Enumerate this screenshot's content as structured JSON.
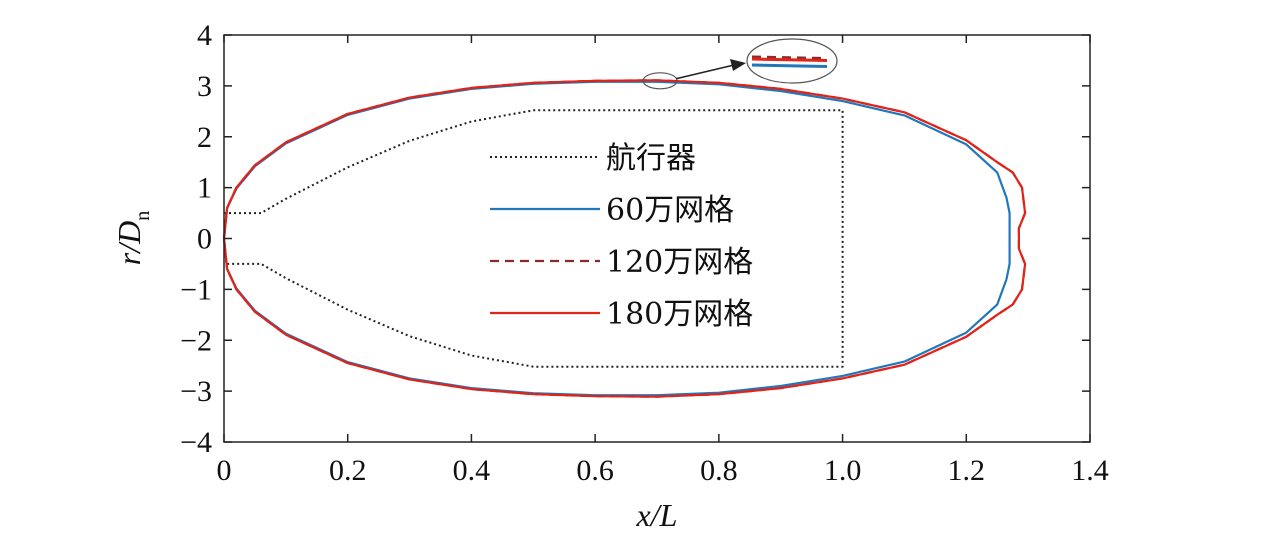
{
  "chart_data": {
    "type": "line",
    "xlabel": "x/L",
    "ylabel": "r/D",
    "ylabel_subscript": "n",
    "xlim": [
      0,
      1.4
    ],
    "ylim": [
      -4,
      4
    ],
    "xticks": [
      "0",
      "0.2",
      "0.4",
      "0.6",
      "0.8",
      "1.0",
      "1.2",
      "1.4"
    ],
    "yticks": [
      "4",
      "3",
      "2",
      "1",
      "0",
      "−1",
      "−2",
      "−3",
      "−4"
    ],
    "grid": false,
    "legend_position": "center",
    "series": [
      {
        "name": "航行器",
        "color": "#222222",
        "style": "dotted",
        "points": [
          [
            0,
            0.5
          ],
          [
            0.06,
            0.5
          ],
          [
            0.1,
            0.78
          ],
          [
            0.2,
            1.4
          ],
          [
            0.3,
            1.92
          ],
          [
            0.4,
            2.3
          ],
          [
            0.5,
            2.52
          ],
          [
            1.0,
            2.52
          ],
          [
            1.0,
            -2.52
          ],
          [
            0.5,
            -2.52
          ],
          [
            0.4,
            -2.3
          ],
          [
            0.3,
            -1.92
          ],
          [
            0.2,
            -1.4
          ],
          [
            0.1,
            -0.78
          ],
          [
            0.06,
            -0.5
          ],
          [
            0,
            -0.5
          ]
        ]
      },
      {
        "name": "60万网格",
        "color": "#2277bb",
        "style": "solid",
        "points": [
          [
            1.265,
            -0.8
          ],
          [
            1.27,
            -0.5
          ],
          [
            1.27,
            0
          ],
          [
            1.27,
            0.5
          ],
          [
            1.265,
            0.8
          ],
          [
            1.25,
            1.3
          ],
          [
            1.2,
            1.85
          ],
          [
            1.1,
            2.42
          ],
          [
            1.0,
            2.7
          ],
          [
            0.9,
            2.9
          ],
          [
            0.8,
            3.03
          ],
          [
            0.7,
            3.08
          ],
          [
            0.6,
            3.08
          ],
          [
            0.5,
            3.04
          ],
          [
            0.4,
            2.94
          ],
          [
            0.3,
            2.75
          ],
          [
            0.2,
            2.43
          ],
          [
            0.1,
            1.87
          ],
          [
            0.05,
            1.42
          ],
          [
            0.02,
            0.98
          ],
          [
            0.005,
            0.6
          ],
          [
            0,
            0
          ],
          [
            0.005,
            -0.6
          ],
          [
            0.02,
            -0.98
          ],
          [
            0.05,
            -1.42
          ],
          [
            0.1,
            -1.87
          ],
          [
            0.2,
            -2.43
          ],
          [
            0.3,
            -2.75
          ],
          [
            0.4,
            -2.94
          ],
          [
            0.5,
            -3.04
          ],
          [
            0.6,
            -3.08
          ],
          [
            0.7,
            -3.08
          ],
          [
            0.8,
            -3.03
          ],
          [
            0.9,
            -2.9
          ],
          [
            1.0,
            -2.7
          ],
          [
            1.1,
            -2.42
          ],
          [
            1.2,
            -1.85
          ],
          [
            1.25,
            -1.3
          ],
          [
            1.265,
            -0.8
          ]
        ]
      },
      {
        "name": "120万网格",
        "color": "#8b2a2a",
        "style": "dashed",
        "points": [
          [
            1.275,
            -1.3
          ],
          [
            1.29,
            -1.0
          ],
          [
            1.295,
            -0.5
          ],
          [
            1.285,
            -0.2
          ],
          [
            1.285,
            0.2
          ],
          [
            1.295,
            0.5
          ],
          [
            1.29,
            1.0
          ],
          [
            1.275,
            1.3
          ],
          [
            1.25,
            1.5
          ],
          [
            1.2,
            1.93
          ],
          [
            1.1,
            2.48
          ],
          [
            1.0,
            2.75
          ],
          [
            0.9,
            2.94
          ],
          [
            0.8,
            3.06
          ],
          [
            0.7,
            3.11
          ],
          [
            0.6,
            3.1
          ],
          [
            0.5,
            3.06
          ],
          [
            0.4,
            2.96
          ],
          [
            0.3,
            2.77
          ],
          [
            0.2,
            2.45
          ],
          [
            0.1,
            1.89
          ],
          [
            0.05,
            1.44
          ],
          [
            0.02,
            1.0
          ],
          [
            0.005,
            0.6
          ],
          [
            0,
            0
          ],
          [
            0.005,
            -0.6
          ],
          [
            0.02,
            -1.0
          ],
          [
            0.05,
            -1.44
          ],
          [
            0.1,
            -1.89
          ],
          [
            0.2,
            -2.45
          ],
          [
            0.3,
            -2.77
          ],
          [
            0.4,
            -2.96
          ],
          [
            0.5,
            -3.06
          ],
          [
            0.6,
            -3.1
          ],
          [
            0.7,
            -3.11
          ],
          [
            0.8,
            -3.06
          ],
          [
            0.9,
            -2.94
          ],
          [
            1.0,
            -2.75
          ],
          [
            1.1,
            -2.48
          ],
          [
            1.2,
            -1.93
          ],
          [
            1.25,
            -1.5
          ],
          [
            1.275,
            -1.3
          ]
        ]
      },
      {
        "name": "180万网格",
        "color": "#e2231a",
        "style": "solid",
        "points": [
          [
            1.275,
            -1.3
          ],
          [
            1.29,
            -1.0
          ],
          [
            1.295,
            -0.5
          ],
          [
            1.285,
            -0.2
          ],
          [
            1.285,
            0.2
          ],
          [
            1.295,
            0.5
          ],
          [
            1.29,
            1.0
          ],
          [
            1.275,
            1.3
          ],
          [
            1.25,
            1.5
          ],
          [
            1.2,
            1.93
          ],
          [
            1.1,
            2.48
          ],
          [
            1.0,
            2.75
          ],
          [
            0.9,
            2.94
          ],
          [
            0.8,
            3.06
          ],
          [
            0.7,
            3.11
          ],
          [
            0.6,
            3.1
          ],
          [
            0.5,
            3.06
          ],
          [
            0.4,
            2.96
          ],
          [
            0.3,
            2.77
          ],
          [
            0.2,
            2.45
          ],
          [
            0.1,
            1.89
          ],
          [
            0.05,
            1.44
          ],
          [
            0.02,
            1.0
          ],
          [
            0.005,
            0.6
          ],
          [
            0,
            0
          ],
          [
            0.005,
            -0.6
          ],
          [
            0.02,
            -1.0
          ],
          [
            0.05,
            -1.44
          ],
          [
            0.1,
            -1.89
          ],
          [
            0.2,
            -2.45
          ],
          [
            0.3,
            -2.77
          ],
          [
            0.4,
            -2.96
          ],
          [
            0.5,
            -3.06
          ],
          [
            0.6,
            -3.1
          ],
          [
            0.7,
            -3.11
          ],
          [
            0.8,
            -3.06
          ],
          [
            0.9,
            -2.94
          ],
          [
            1.0,
            -2.75
          ],
          [
            1.1,
            -2.48
          ],
          [
            1.2,
            -1.93
          ],
          [
            1.25,
            -1.5
          ],
          [
            1.275,
            -1.3
          ]
        ]
      }
    ],
    "annotation": {
      "marker_center": [
        0.705,
        3.1
      ],
      "zoom_callout": "enlarged view of the curves near the top crest"
    }
  }
}
